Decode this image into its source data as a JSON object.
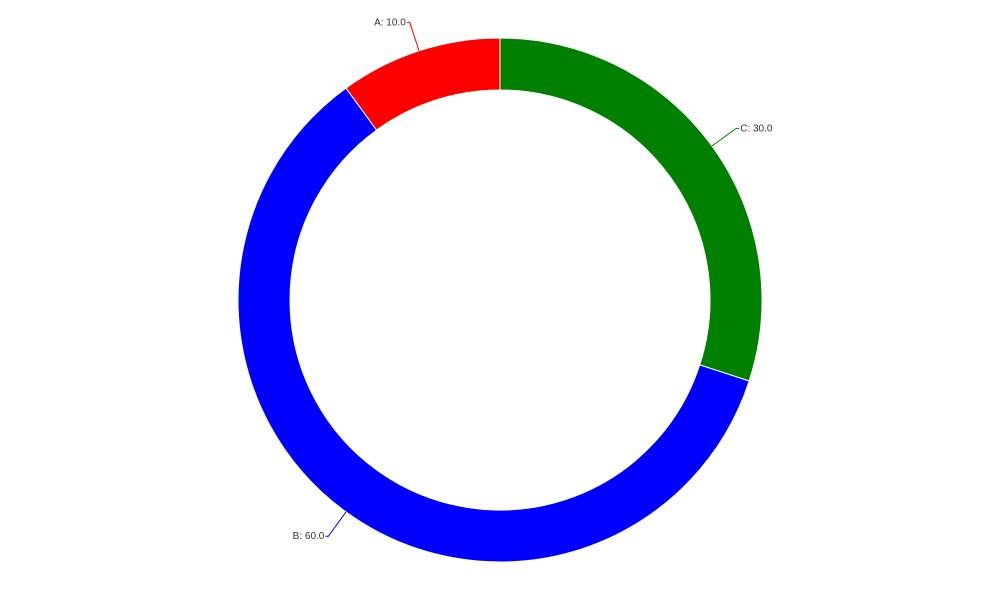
{
  "chart_data": {
    "type": "pie",
    "donut": true,
    "title": "",
    "start": "top",
    "direction": "clockwise",
    "slices": [
      {
        "label": "C: 30.0",
        "category": "C",
        "value": 30.0,
        "color": "#008000"
      },
      {
        "label": "B: 60.0",
        "category": "B",
        "value": 60.0,
        "color": "#0000ff"
      },
      {
        "label": "A: 10.0",
        "category": "A",
        "value": 10.0,
        "color": "#ff0000"
      }
    ]
  }
}
